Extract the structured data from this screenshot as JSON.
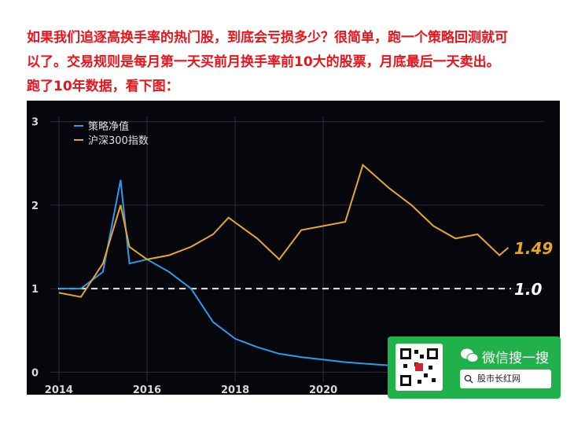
{
  "article": {
    "lines": [
      "如果我们追逐高换手率的热门股，到底会亏损多少？很简单，跑一个策略回测就可",
      "以了。交易规则是每月第一天买前月换手率前10大的股票，月底最后一天卖出。",
      "跑了10年数据，看下图："
    ]
  },
  "chart_data": {
    "type": "line",
    "series": [
      {
        "name": "策略净值",
        "color": "#2f9be8",
        "x": [
          2014.0,
          2014.5,
          2015.0,
          2015.4,
          2015.6,
          2016.0,
          2016.5,
          2017.0,
          2017.5,
          2018.0,
          2018.5,
          2019.0,
          2019.5,
          2020.0,
          2020.5,
          2021.0,
          2021.5
        ],
        "values": [
          1.0,
          1.0,
          1.2,
          2.3,
          1.3,
          1.35,
          1.2,
          1.0,
          0.6,
          0.4,
          0.3,
          0.22,
          0.18,
          0.15,
          0.12,
          0.1,
          0.08
        ]
      },
      {
        "name": "沪深300指数",
        "color": "#e7a52c",
        "x": [
          2014.0,
          2014.5,
          2015.0,
          2015.4,
          2015.6,
          2016.0,
          2016.5,
          2017.0,
          2017.5,
          2017.85,
          2018.5,
          2019.0,
          2019.5,
          2020.0,
          2020.5,
          2020.9,
          2021.5,
          2022.0,
          2022.5,
          2023.0,
          2023.5,
          2024.0,
          2024.2
        ],
        "values": [
          0.95,
          0.9,
          1.3,
          2.0,
          1.5,
          1.35,
          1.4,
          1.5,
          1.65,
          1.85,
          1.6,
          1.35,
          1.7,
          1.75,
          1.8,
          2.48,
          2.2,
          2.0,
          1.75,
          1.6,
          1.65,
          1.4,
          1.49
        ]
      }
    ],
    "xlim": [
      2013.27,
      2025.37
    ],
    "xticks": [
      2014,
      2016,
      2018,
      2020
    ],
    "ylim": [
      -0.27,
      3.25
    ],
    "yticks": [
      0,
      1,
      2,
      3
    ],
    "reference_line": 1.0,
    "annotations": [
      {
        "text": "1.49",
        "value": 1.49
      },
      {
        "text": "1.0",
        "value": 1.0
      }
    ]
  },
  "widget": {
    "title": "微信搜一搜",
    "search": "股市长红网"
  }
}
